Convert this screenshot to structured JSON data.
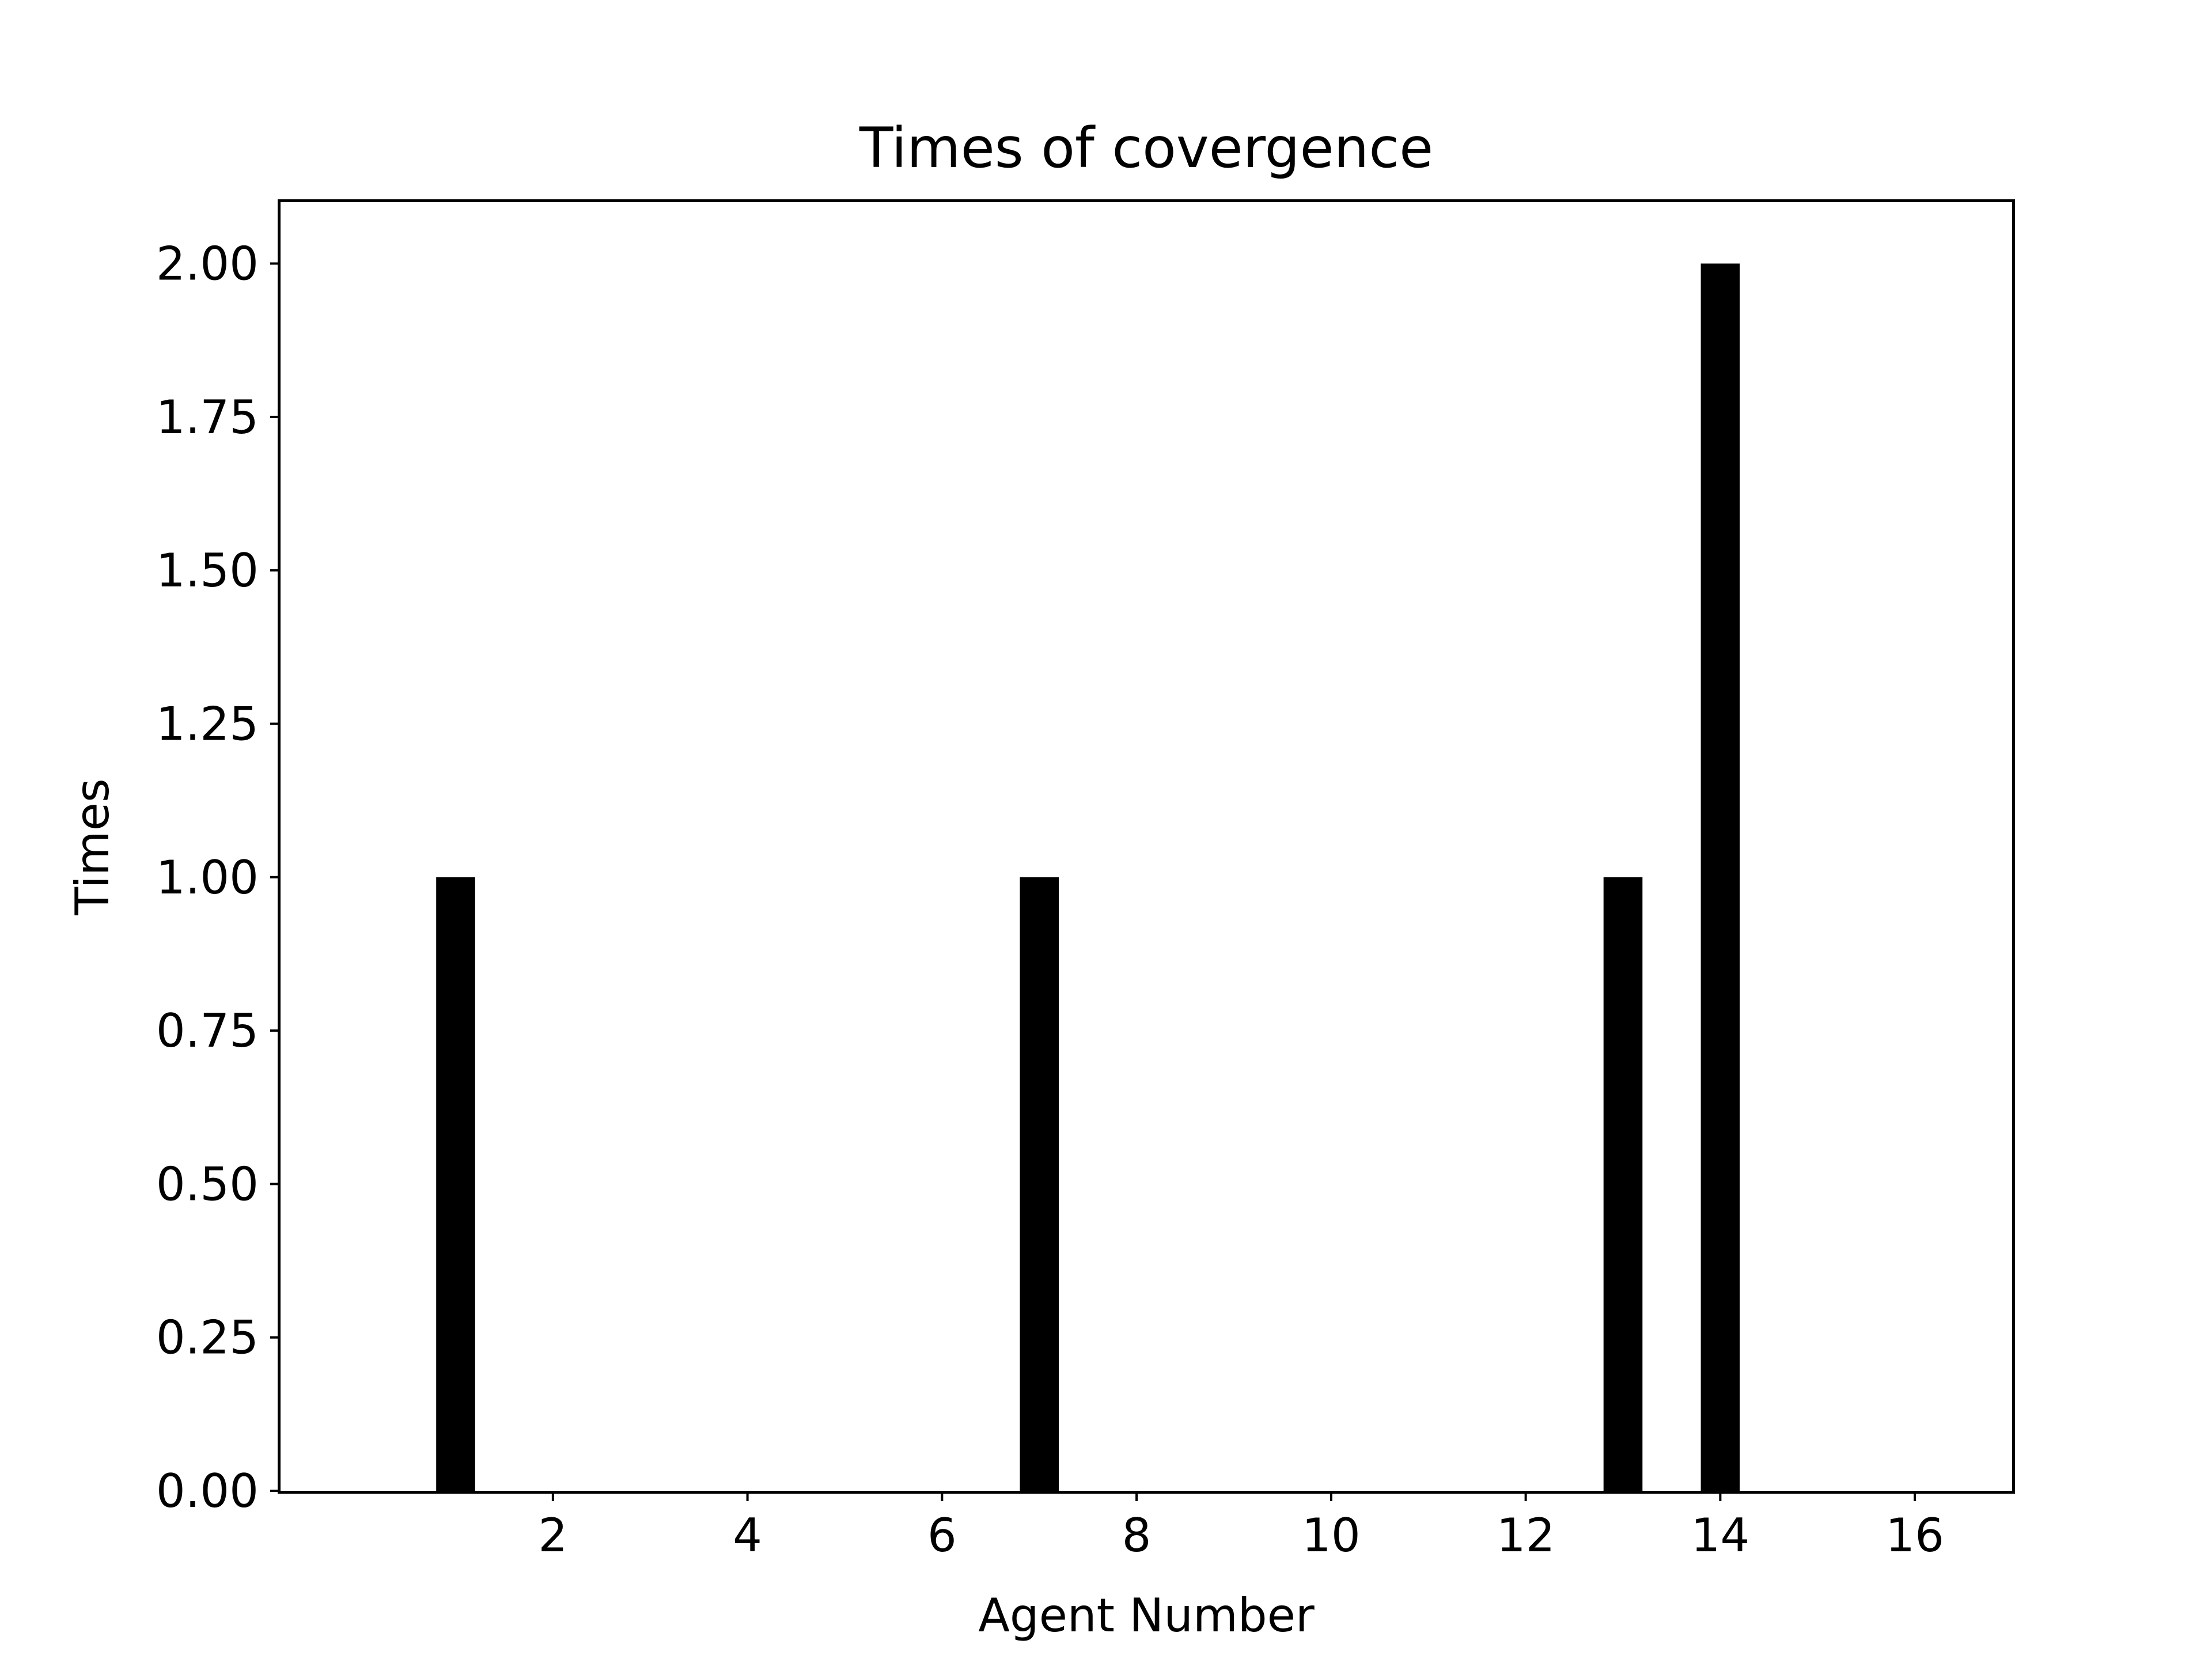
{
  "chart_data": {
    "type": "bar",
    "title": "Times of covergence",
    "xlabel": "Agent Number",
    "ylabel": "Times",
    "x": [
      1,
      7,
      13,
      14
    ],
    "values": [
      1,
      1,
      1,
      2
    ],
    "bar_width": 0.4,
    "xlim": [
      -0.8,
      17.0
    ],
    "ylim": [
      0,
      2.1
    ],
    "xticks": [
      2,
      4,
      6,
      8,
      10,
      12,
      14,
      16
    ],
    "xtick_labels": [
      "2",
      "4",
      "6",
      "8",
      "10",
      "12",
      "14",
      "16"
    ],
    "yticks": [
      0,
      0.25,
      0.5,
      0.75,
      1.0,
      1.25,
      1.5,
      1.75,
      2.0
    ],
    "ytick_labels": [
      "0.00",
      "0.25",
      "0.50",
      "0.75",
      "1.00",
      "1.25",
      "1.50",
      "1.75",
      "2.00"
    ],
    "grid": false,
    "colors": {
      "bar": "#000000",
      "axes": "#000000",
      "background": "#ffffff"
    }
  }
}
